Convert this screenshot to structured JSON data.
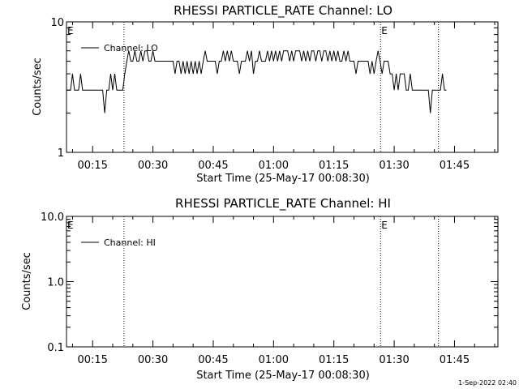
{
  "footer": {
    "timestamp": "1-Sep-2022 02:40"
  },
  "chart_data": [
    {
      "type": "line",
      "title": "RHESSI PARTICLE_RATE Channel: LO",
      "xlabel": "Start Time (25-May-17 00:08:30)",
      "ylabel": "Counts/sec",
      "yscale": "log",
      "ylim": [
        1,
        10
      ],
      "xlim_minutes": [
        8.5,
        115.8
      ],
      "y_ticks": [
        1,
        10
      ],
      "y_tick_labels": [
        "1",
        "10"
      ],
      "x_ticks": [
        "00:15",
        "00:30",
        "00:45",
        "01:00",
        "01:15",
        "01:30",
        "01:45"
      ],
      "x_tick_minutes": [
        15,
        30,
        45,
        60,
        75,
        90,
        105
      ],
      "legend": {
        "entries": [
          "Channel: LO"
        ],
        "placement": "top-left"
      },
      "event_lines_minutes": [
        22.8,
        86.6,
        101.0
      ],
      "event_markers": [
        {
          "label": "E",
          "minute": 8.5
        },
        {
          "label": "E",
          "minute": 86.6
        }
      ],
      "series": [
        {
          "name": "Channel: LO",
          "x_start_minute": 8.5,
          "x_step_minutes": 0.5,
          "values": [
            3,
            3,
            3,
            4,
            3,
            3,
            3,
            4,
            3,
            3,
            3,
            3,
            3,
            3,
            3,
            3,
            3,
            3,
            3,
            2,
            3,
            3,
            4,
            3,
            4,
            3,
            3,
            3,
            3,
            4,
            5,
            6,
            5,
            5,
            6,
            5,
            5,
            6,
            5,
            6,
            6,
            5,
            5,
            6,
            5,
            5,
            5,
            5,
            5,
            5,
            5,
            5,
            5,
            5,
            4,
            5,
            5,
            4,
            5,
            4,
            5,
            4,
            5,
            4,
            5,
            4,
            5,
            4,
            5,
            6,
            5,
            5,
            5,
            5,
            5,
            4,
            5,
            5,
            6,
            5,
            6,
            5,
            6,
            5,
            5,
            5,
            4,
            5,
            5,
            5,
            6,
            5,
            6,
            4,
            5,
            5,
            6,
            5,
            5,
            5,
            6,
            5,
            6,
            5,
            6,
            5,
            6,
            5,
            6,
            6,
            6,
            5,
            6,
            5,
            6,
            6,
            6,
            5,
            6,
            5,
            6,
            5,
            6,
            6,
            5,
            6,
            6,
            5,
            6,
            6,
            5,
            6,
            5,
            6,
            5,
            6,
            5,
            5,
            6,
            5,
            6,
            5,
            5,
            5,
            4,
            5,
            5,
            5,
            5,
            5,
            5,
            4,
            5,
            4,
            5,
            6,
            5,
            4,
            5,
            5,
            5,
            4,
            4,
            3,
            4,
            3,
            4,
            4,
            4,
            3,
            3,
            4,
            3,
            3,
            3,
            3,
            3,
            3,
            3,
            3,
            3,
            2,
            3,
            3,
            3,
            3,
            3,
            4,
            3,
            3
          ]
        }
      ]
    },
    {
      "type": "line",
      "title": "RHESSI PARTICLE_RATE Channel: HI",
      "xlabel": "Start Time (25-May-17 00:08:30)",
      "ylabel": "Counts/sec",
      "yscale": "log",
      "ylim": [
        0.1,
        10
      ],
      "xlim_minutes": [
        8.5,
        115.8
      ],
      "y_ticks": [
        0.1,
        1,
        10
      ],
      "y_tick_labels": [
        "0.1",
        "1.0",
        "10.0"
      ],
      "x_ticks": [
        "00:15",
        "00:30",
        "00:45",
        "01:00",
        "01:15",
        "01:30",
        "01:45"
      ],
      "x_tick_minutes": [
        15,
        30,
        45,
        60,
        75,
        90,
        105
      ],
      "legend": {
        "entries": [
          "Channel: HI"
        ],
        "placement": "top-left"
      },
      "event_lines_minutes": [
        22.8,
        86.6,
        101.0
      ],
      "event_markers": [
        {
          "label": "E",
          "minute": 8.5
        },
        {
          "label": "E",
          "minute": 86.6
        }
      ],
      "series": [
        {
          "name": "Channel: HI",
          "x_start_minute": 8.5,
          "x_step_minutes": 0.5,
          "values": []
        }
      ]
    }
  ]
}
